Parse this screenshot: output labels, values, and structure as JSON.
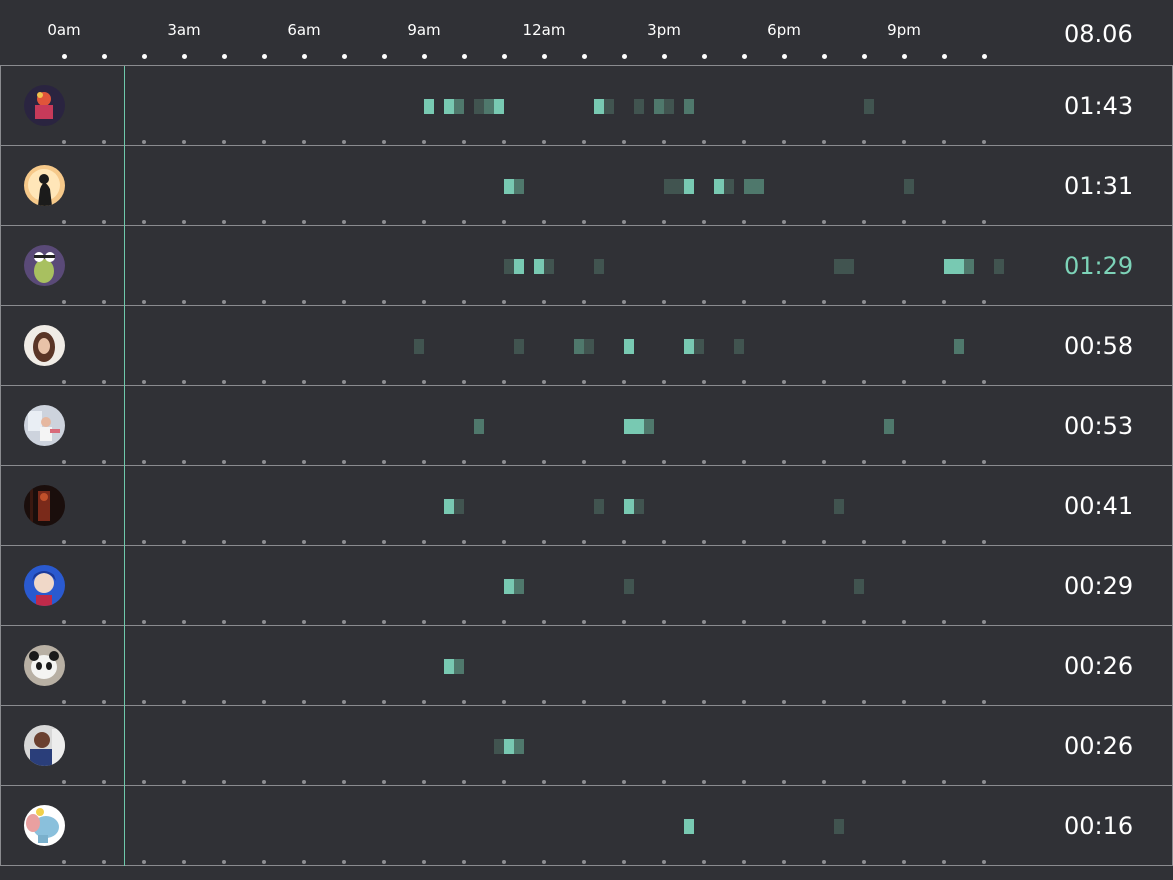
{
  "header": {
    "date": "08.06"
  },
  "chart_data": {
    "type": "heatmap",
    "x_unit": "hour",
    "xlim": [
      0,
      24
    ],
    "tick_labels": [
      "0am",
      "3am",
      "6am",
      "9am",
      "12am",
      "3pm",
      "6pm",
      "9pm"
    ],
    "tick_hours": [
      0,
      3,
      6,
      9,
      12,
      15,
      18,
      21
    ],
    "dot_hours": [
      0,
      1,
      2,
      3,
      4,
      5,
      6,
      7,
      8,
      9,
      10,
      11,
      12,
      13,
      14,
      15,
      16,
      17,
      18,
      19,
      20,
      21,
      22,
      23
    ],
    "current_time_hour": 1.5,
    "highlight_color": "#7dd3b8",
    "intensity_colors": {
      "1": "#415450",
      "2": "#4f786c",
      "3": "#78c9b2"
    },
    "rows": [
      {
        "total": "01:43",
        "highlight": false,
        "avatar": "dancer-avatar",
        "cells": [
          [
            9.0,
            3
          ],
          [
            9.5,
            3
          ],
          [
            9.75,
            2
          ],
          [
            10.25,
            1
          ],
          [
            10.5,
            2
          ],
          [
            10.75,
            3
          ],
          [
            13.25,
            3
          ],
          [
            13.5,
            1
          ],
          [
            14.25,
            1
          ],
          [
            14.75,
            2
          ],
          [
            15.0,
            1
          ],
          [
            15.5,
            2
          ],
          [
            20.0,
            1
          ]
        ]
      },
      {
        "total": "01:31",
        "highlight": false,
        "avatar": "silhouette-avatar",
        "cells": [
          [
            11.0,
            3
          ],
          [
            11.25,
            2
          ],
          [
            15.0,
            1
          ],
          [
            15.25,
            1
          ],
          [
            15.5,
            3
          ],
          [
            16.25,
            3
          ],
          [
            16.5,
            1
          ],
          [
            17.0,
            2
          ],
          [
            17.25,
            2
          ],
          [
            21.0,
            1
          ]
        ]
      },
      {
        "total": "01:29",
        "highlight": true,
        "avatar": "cartoon-avatar",
        "cells": [
          [
            11.0,
            1
          ],
          [
            11.25,
            3
          ],
          [
            11.75,
            3
          ],
          [
            12.0,
            1
          ],
          [
            13.25,
            1
          ],
          [
            19.25,
            1
          ],
          [
            19.5,
            1
          ],
          [
            22.0,
            3
          ],
          [
            22.25,
            3
          ],
          [
            22.5,
            2
          ],
          [
            23.25,
            1
          ]
        ]
      },
      {
        "total": "00:58",
        "highlight": false,
        "avatar": "woman-avatar",
        "cells": [
          [
            8.75,
            1
          ],
          [
            11.25,
            1
          ],
          [
            12.75,
            2
          ],
          [
            13.0,
            1
          ],
          [
            14.0,
            3
          ],
          [
            15.5,
            3
          ],
          [
            15.75,
            1
          ],
          [
            16.75,
            1
          ],
          [
            22.25,
            2
          ]
        ]
      },
      {
        "total": "00:53",
        "highlight": false,
        "avatar": "girl-avatar",
        "cells": [
          [
            10.25,
            2
          ],
          [
            14.0,
            3
          ],
          [
            14.25,
            3
          ],
          [
            14.5,
            2
          ],
          [
            20.5,
            2
          ]
        ]
      },
      {
        "total": "00:41",
        "highlight": false,
        "avatar": "dark-figure-avatar",
        "cells": [
          [
            9.5,
            3
          ],
          [
            9.75,
            1
          ],
          [
            13.25,
            1
          ],
          [
            14.0,
            3
          ],
          [
            14.25,
            1
          ],
          [
            19.25,
            1
          ]
        ]
      },
      {
        "total": "00:29",
        "highlight": false,
        "avatar": "anime-avatar",
        "cells": [
          [
            11.0,
            3
          ],
          [
            11.25,
            2
          ],
          [
            14.0,
            1
          ],
          [
            19.75,
            1
          ]
        ]
      },
      {
        "total": "00:26",
        "highlight": false,
        "avatar": "panda-avatar",
        "cells": [
          [
            9.5,
            3
          ],
          [
            9.75,
            2
          ]
        ]
      },
      {
        "total": "00:26",
        "highlight": false,
        "avatar": "man-avatar",
        "cells": [
          [
            10.75,
            1
          ],
          [
            11.0,
            3
          ],
          [
            11.25,
            2
          ]
        ]
      },
      {
        "total": "00:16",
        "highlight": false,
        "avatar": "elephant-avatar",
        "cells": [
          [
            15.5,
            3
          ],
          [
            19.25,
            1
          ]
        ]
      }
    ]
  }
}
